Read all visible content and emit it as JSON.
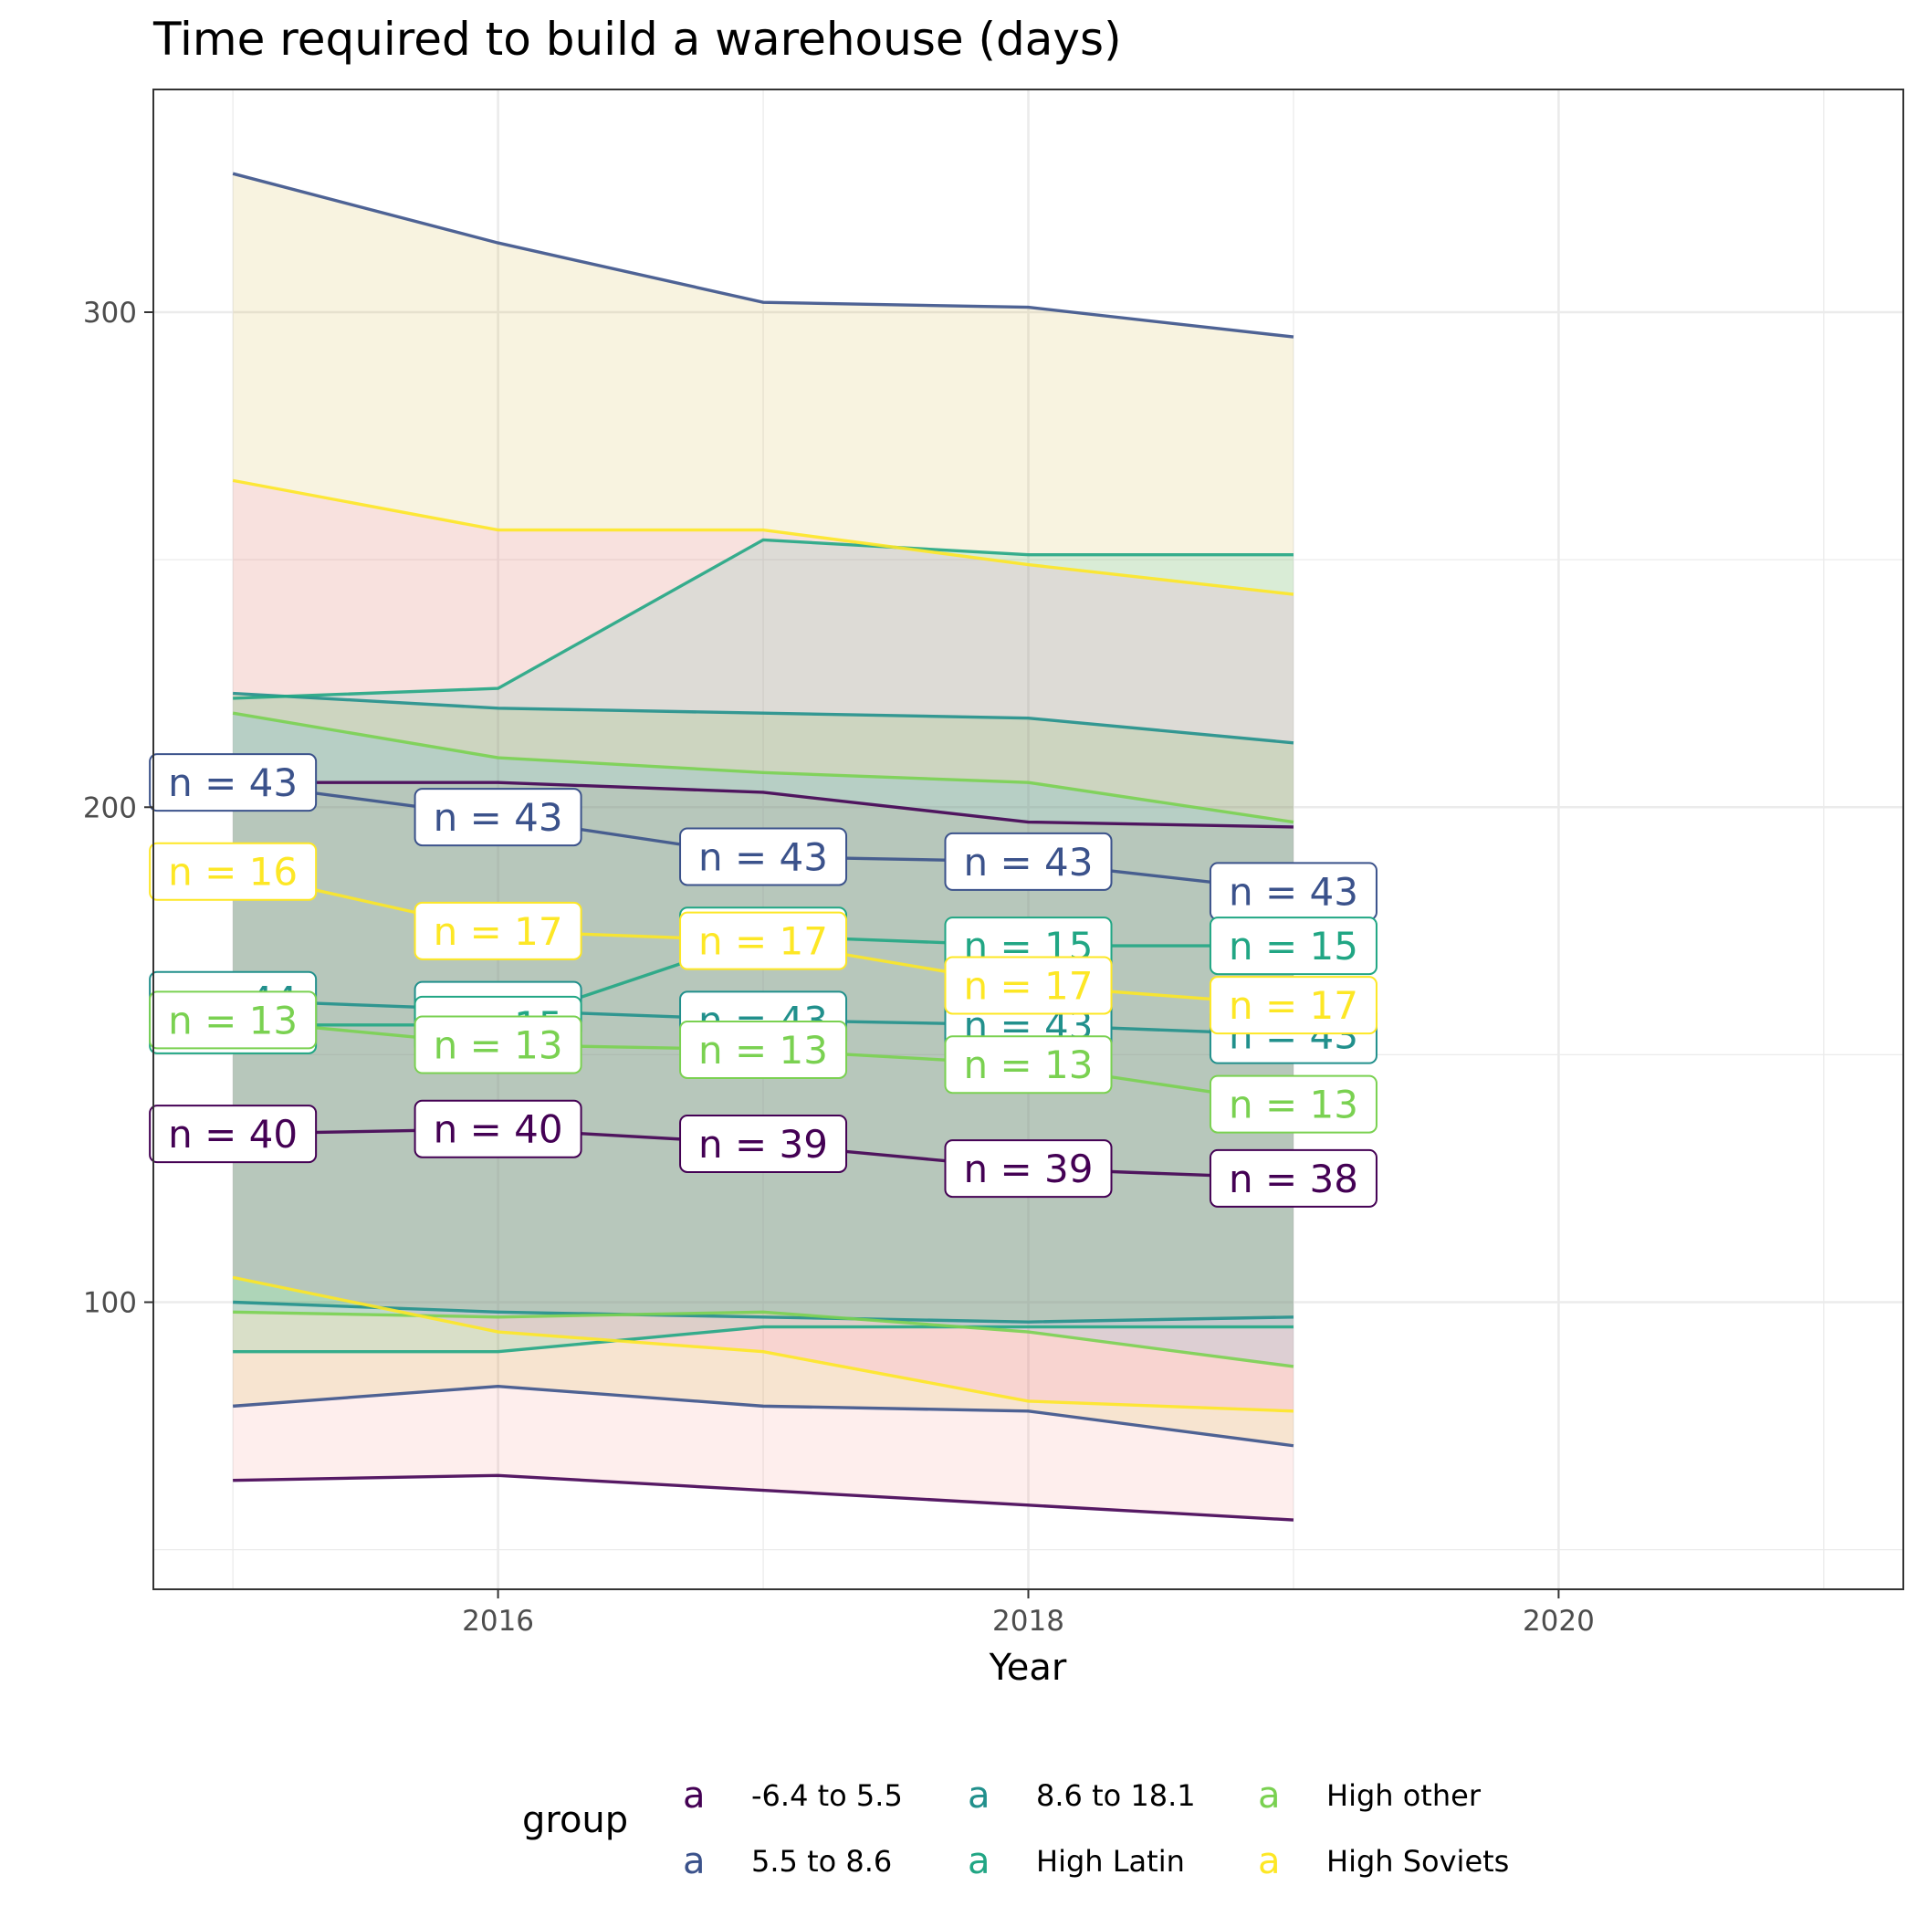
{
  "chart_data": {
    "type": "area",
    "title": "Time required to build a warehouse (days)",
    "xlabel": "Year",
    "ylabel": "",
    "xlim": [
      2014.7,
      2021.3
    ],
    "ylim": [
      42,
      345
    ],
    "x_ticks": [
      2016,
      2018,
      2020
    ],
    "y_ticks": [
      100,
      200,
      300
    ],
    "grid": true,
    "legend": {
      "title": "group",
      "position": "bottom",
      "key_glyph": "a",
      "columns": 3,
      "entries": [
        "-6.4 to 5.5",
        "5.5 to 8.6",
        "8.6 to 18.1",
        "High Latin",
        "High other",
        "High Soviets"
      ]
    },
    "x": [
      2015,
      2016,
      2017,
      2018,
      2019
    ],
    "series": [
      {
        "name": "-6.4 to 5.5",
        "color": "#440154",
        "fill": "#f8766d",
        "median": [
          134,
          135,
          132,
          127,
          125
        ],
        "lower": [
          64,
          65,
          62,
          59,
          56
        ],
        "upper": [
          205,
          205,
          203,
          197,
          196
        ],
        "n_labels": [
          "n = 40",
          "n = 40",
          "n = 39",
          "n = 39",
          "n = 38"
        ]
      },
      {
        "name": "5.5 to 8.6",
        "color": "#3b528b",
        "fill": "#c49a00",
        "median": [
          205,
          198,
          190,
          189,
          183
        ],
        "lower": [
          79,
          83,
          79,
          78,
          71
        ],
        "upper": [
          328,
          314,
          302,
          301,
          295
        ],
        "n_labels": [
          "n = 43",
          "n = 43",
          "n = 43",
          "n = 43",
          "n = 43"
        ]
      },
      {
        "name": "8.6 to 18.1",
        "color": "#21908c",
        "fill": "#53b400",
        "median": [
          161,
          159,
          157,
          156,
          154
        ],
        "lower": [
          100,
          98,
          97,
          96,
          97
        ],
        "upper": [
          223,
          220,
          219,
          218,
          213
        ],
        "n_labels": [
          "n = 44",
          "n = 45",
          "n = 43",
          "n = 43",
          "n = 43"
        ]
      },
      {
        "name": "High Latin",
        "color": "#21a684",
        "fill": "#00c094",
        "median": [
          156,
          156,
          174,
          172,
          172
        ],
        "lower": [
          90,
          90,
          95,
          95,
          95
        ],
        "upper": [
          222,
          224,
          254,
          251,
          251
        ],
        "n_labels": [
          "n = 15",
          "n = 15",
          "n = 15",
          "n = 15",
          "n = 15"
        ]
      },
      {
        "name": "High other",
        "color": "#7ad151",
        "fill": "#00b6eb",
        "median": [
          157,
          152,
          151,
          148,
          140
        ],
        "lower": [
          98,
          97,
          98,
          94,
          87
        ],
        "upper": [
          219,
          210,
          207,
          205,
          197
        ],
        "n_labels": [
          "n = 13",
          "n = 13",
          "n = 13",
          "n = 13",
          "n = 13"
        ]
      },
      {
        "name": "High Soviets",
        "color": "#fde725",
        "fill": "#fb61d7",
        "median": [
          187,
          175,
          173,
          164,
          160
        ],
        "lower": [
          105,
          94,
          90,
          80,
          78
        ],
        "upper": [
          266,
          256,
          256,
          249,
          243
        ],
        "n_labels": [
          "n = 16",
          "n = 17",
          "n = 17",
          "n = 17",
          "n = 17"
        ]
      }
    ]
  }
}
